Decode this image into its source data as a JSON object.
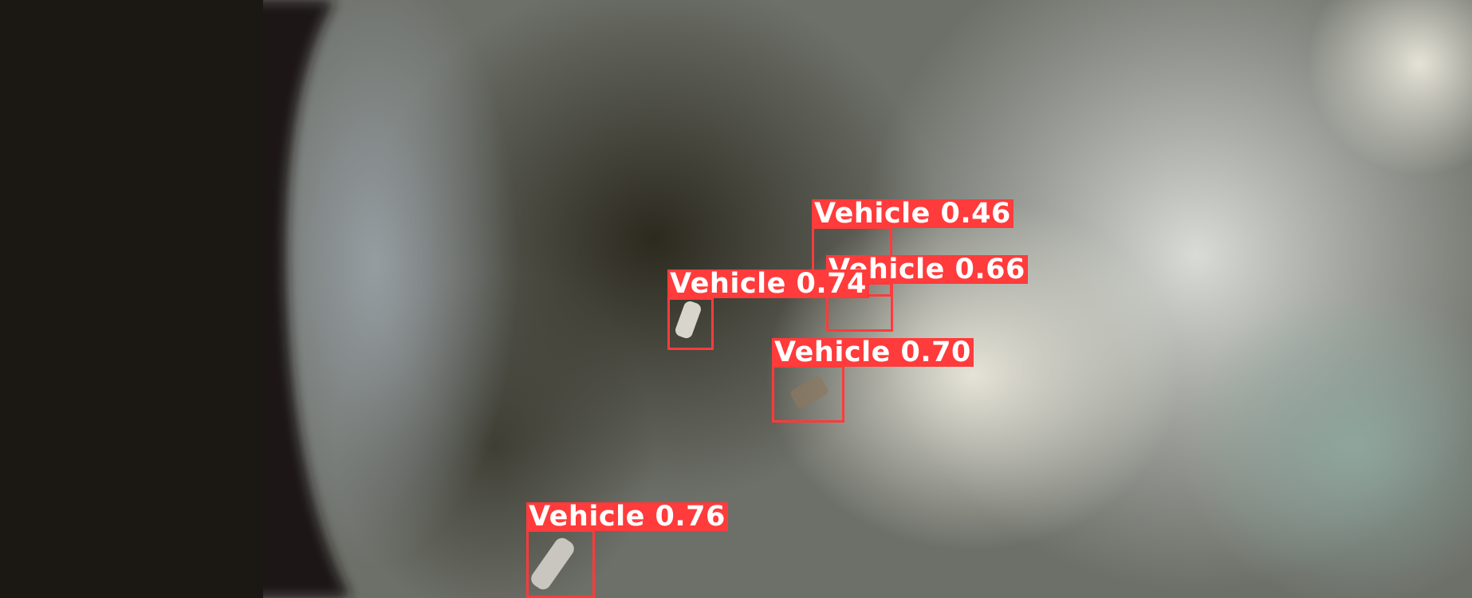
{
  "colors": {
    "box": "#ff3b3b",
    "label_text": "#ffffff"
  },
  "detections": [
    {
      "label": "Vehicle",
      "score": "0.46",
      "text": "Vehicle 0.46"
    },
    {
      "label": "Vehicle",
      "score": "0.66",
      "text": "Vehicle 0.66"
    },
    {
      "label": "Vehicle",
      "score": "0.74",
      "text": "Vehicle 0.74"
    },
    {
      "label": "Vehicle",
      "score": "0.70",
      "text": "Vehicle 0.70"
    },
    {
      "label": "Vehicle",
      "score": "0.76",
      "text": "Vehicle 0.76"
    }
  ]
}
